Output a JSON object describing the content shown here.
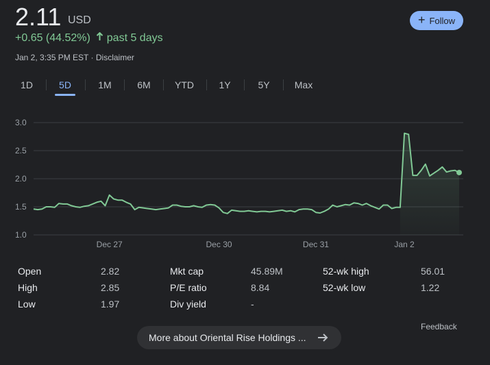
{
  "header": {
    "price": "2.11",
    "currency": "USD",
    "change": "+0.65 (44.52%)",
    "period": "past 5 days",
    "timestamp": "Jan 2, 3:35 PM EST",
    "separator": "·",
    "disclaimer": "Disclaimer",
    "follow_label": "Follow",
    "accent_color": "#81c995",
    "button_color": "#8ab4f8"
  },
  "tabs": [
    {
      "label": "1D"
    },
    {
      "label": "5D"
    },
    {
      "label": "1M"
    },
    {
      "label": "6M"
    },
    {
      "label": "YTD"
    },
    {
      "label": "1Y"
    },
    {
      "label": "5Y"
    },
    {
      "label": "Max"
    }
  ],
  "active_tab": "5D",
  "chart_data": {
    "type": "area",
    "title": "",
    "xlabel": "",
    "ylabel": "",
    "ylim": [
      1.0,
      3.0
    ],
    "yticks": [
      "3.0",
      "2.5",
      "2.0",
      "1.5",
      "1.0"
    ],
    "xticks": [
      "Dec 27",
      "Dec 30",
      "Dec 31",
      "Jan 2"
    ],
    "grid": true,
    "line_color": "#81c995",
    "series": [
      {
        "values": [
          1.46,
          1.45,
          1.46,
          1.5,
          1.5,
          1.49,
          1.56,
          1.55,
          1.55,
          1.52,
          1.5,
          1.49,
          1.51,
          1.52,
          1.55,
          1.58,
          1.6,
          1.52,
          1.71,
          1.64,
          1.62,
          1.62,
          1.58,
          1.55,
          1.45,
          1.49,
          1.48,
          1.47,
          1.46,
          1.45,
          1.46,
          1.47,
          1.48,
          1.53,
          1.53,
          1.51,
          1.5,
          1.5,
          1.52,
          1.5,
          1.49,
          1.53,
          1.54,
          1.53,
          1.48,
          1.4,
          1.38,
          1.44,
          1.43,
          1.42,
          1.42,
          1.43,
          1.42,
          1.41,
          1.42,
          1.42,
          1.41,
          1.42,
          1.43,
          1.44,
          1.42,
          1.43,
          1.41,
          1.45,
          1.46,
          1.46,
          1.45,
          1.4,
          1.39,
          1.42,
          1.46,
          1.53,
          1.5,
          1.52,
          1.54,
          1.53,
          1.57,
          1.56,
          1.53,
          1.56,
          1.52,
          1.49,
          1.46,
          1.53,
          1.53,
          1.47,
          1.49,
          1.49,
          2.81,
          2.79,
          2.06,
          2.06,
          2.15,
          2.26,
          2.05,
          2.1,
          2.15,
          2.21,
          2.12,
          2.14,
          2.15,
          2.11
        ]
      }
    ]
  },
  "stats": [
    {
      "label": "Open",
      "value": "2.82"
    },
    {
      "label": "High",
      "value": "2.85"
    },
    {
      "label": "Low",
      "value": "1.97"
    },
    {
      "label": "Mkt cap",
      "value": "45.89M"
    },
    {
      "label": "P/E ratio",
      "value": "8.84"
    },
    {
      "label": "Div yield",
      "value": "-"
    },
    {
      "label": "52-wk high",
      "value": "56.01"
    },
    {
      "label": "52-wk low",
      "value": "1.22"
    }
  ],
  "feedback_label": "Feedback",
  "more_label": "More about Oriental Rise Holdings ..."
}
